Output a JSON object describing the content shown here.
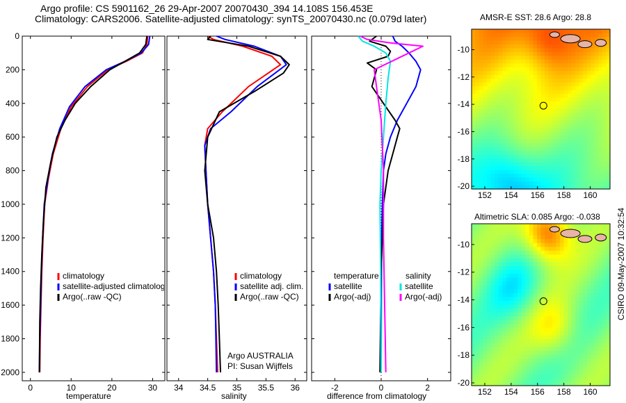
{
  "title_line1": "Argo profile: CS 5901162_26 29-Apr-2007 20070430_394 14.108S 156.453E",
  "title_line2": "Climatology: CARS2006. Satellite-adjusted climatology: synTS_20070430.nc (0.079d later)",
  "credit": "CSIRO 09-May-2007 10:32:54",
  "panel_temp": {
    "xlabel": "temperature",
    "xticks": [
      "0",
      "10",
      "20",
      "30"
    ],
    "yticks": [
      "0",
      "200",
      "400",
      "600",
      "800",
      "1000",
      "1200",
      "1400",
      "1600",
      "1800",
      "2000"
    ],
    "legend": [
      "climatology",
      "satellite-adjusted climatology",
      "Argo(..raw -QC)"
    ]
  },
  "panel_sal": {
    "xlabel": "salinity",
    "xticks": [
      "34",
      "34.5",
      "35",
      "35.5",
      "36"
    ],
    "legend": [
      "climatology",
      "satellite adj. clim.",
      "Argo(..raw -QC)"
    ],
    "note1": "Argo AUSTRALIA",
    "note2": "PI: Susan Wijffels"
  },
  "panel_diff": {
    "xlabel": "difference from climatology",
    "xticks": [
      "-2",
      "0",
      "2"
    ],
    "legend_temp_head": "temperature",
    "legend_sal_head": "salinity",
    "legend_temp": [
      "satellite",
      "Argo(-adj)"
    ],
    "legend_sal": [
      "satellite",
      "Argo(-adj)"
    ]
  },
  "map_sst": {
    "title": "AMSR-E SST: 28.6 Argo: 28.8",
    "xticks": [
      "152",
      "154",
      "156",
      "158",
      "160"
    ],
    "yticks": [
      "-10",
      "-12",
      "-14",
      "-16",
      "-18",
      "-20"
    ]
  },
  "map_sla": {
    "title": "Altimetric SLA: 0.085 Argo: -0.038",
    "xticks": [
      "152",
      "154",
      "156",
      "158",
      "160"
    ],
    "yticks": [
      "-10",
      "-12",
      "-14",
      "-16",
      "-18",
      "-20"
    ]
  },
  "colors": {
    "climatology": "#ff0000",
    "satellite": "#0000ff",
    "argo": "#000000",
    "sal_satellite": "#00e5e5",
    "sal_argo": "#ff00ff"
  },
  "chart_data": [
    {
      "type": "line",
      "xlabel": "temperature",
      "xlim": [
        -2,
        33
      ],
      "ylim": [
        2050,
        0
      ],
      "series": [
        {
          "name": "climatology",
          "x": [
            28.8,
            28.6,
            27.5,
            23.5,
            19,
            14,
            10,
            7.5,
            5.6,
            4.4,
            3.5,
            3.1,
            2.8,
            2.6,
            2.4,
            2.3
          ],
          "y": [
            0,
            50,
            100,
            150,
            200,
            300,
            420,
            550,
            700,
            850,
            1000,
            1200,
            1400,
            1600,
            1800,
            2000
          ]
        },
        {
          "name": "satellite-adjusted climatology",
          "x": [
            29.3,
            29.0,
            27.2,
            23.2,
            18.6,
            13.4,
            9.6,
            7.2,
            5.4,
            4.3,
            3.4,
            3.0,
            2.7,
            2.5,
            2.3,
            2.2
          ],
          "y": [
            0,
            50,
            100,
            150,
            200,
            300,
            420,
            550,
            700,
            850,
            1000,
            1200,
            1400,
            1600,
            1800,
            2000
          ]
        },
        {
          "name": "Argo(..raw -QC)",
          "x": [
            28.6,
            28.3,
            26.8,
            23.2,
            19.5,
            14.8,
            11,
            8.5,
            6.5,
            5,
            3.8,
            3.2,
            2.8,
            2.5,
            2.3,
            2.2
          ],
          "y": [
            0,
            50,
            100,
            150,
            200,
            300,
            400,
            500,
            600,
            750,
            900,
            1100,
            1300,
            1500,
            1700,
            2000
          ]
        }
      ]
    },
    {
      "type": "line",
      "xlabel": "salinity",
      "xlim": [
        33.8,
        36.2
      ],
      "ylim": [
        2050,
        0
      ],
      "series": [
        {
          "name": "climatology",
          "x": [
            34.5,
            34.6,
            35.1,
            35.6,
            35.75,
            35.2,
            34.75,
            34.5,
            34.45,
            34.47,
            34.5,
            34.55,
            34.6,
            34.63,
            34.65,
            34.67
          ],
          "y": [
            0,
            20,
            60,
            120,
            170,
            300,
            450,
            550,
            650,
            800,
            1000,
            1200,
            1400,
            1600,
            1800,
            2000
          ]
        },
        {
          "name": "satellite adj. clim.",
          "x": [
            34.65,
            34.8,
            35.3,
            35.75,
            35.85,
            35.35,
            34.9,
            34.55,
            34.45,
            34.47,
            34.5,
            34.55,
            34.6,
            34.63,
            34.64,
            34.65
          ],
          "y": [
            0,
            20,
            60,
            120,
            170,
            300,
            450,
            550,
            650,
            800,
            1000,
            1200,
            1400,
            1600,
            1800,
            2000
          ]
        },
        {
          "name": "Argo(..raw -QC)",
          "x": [
            34.55,
            34.5,
            35.2,
            35.75,
            35.9,
            35.8,
            35.3,
            34.7,
            34.5,
            34.45,
            34.5,
            34.6,
            34.65,
            34.68,
            34.7,
            34.72
          ],
          "y": [
            0,
            20,
            60,
            120,
            170,
            220,
            330,
            450,
            600,
            800,
            1000,
            1200,
            1400,
            1600,
            1800,
            2000
          ]
        }
      ]
    },
    {
      "type": "line",
      "xlabel": "difference from climatology",
      "xlim": [
        -3,
        3
      ],
      "ylim": [
        2050,
        0
      ],
      "series": [
        {
          "name": "satellite",
          "x": [
            0.5,
            0.6,
            0.9,
            1.2,
            1.5,
            1.7,
            1.5,
            1.1,
            0.7,
            0.4,
            0.2,
            0.1,
            0.05,
            0.02,
            0.01,
            0.0
          ],
          "y": [
            0,
            30,
            60,
            100,
            150,
            200,
            300,
            400,
            500,
            600,
            700,
            800,
            1000,
            1200,
            1500,
            2000
          ]
        },
        {
          "name": "Argo(-adj)",
          "x": [
            -0.2,
            -0.5,
            0.2,
            0.4,
            0.3,
            -0.6,
            -0.2,
            -0.4,
            0.1,
            0.6,
            0.8,
            0.7,
            0.5,
            0.3,
            0.1,
            0.0,
            -0.05
          ],
          "y": [
            0,
            30,
            60,
            90,
            120,
            160,
            200,
            300,
            400,
            500,
            550,
            600,
            700,
            800,
            1000,
            1400,
            2000
          ]
        },
        {
          "name": "satellite",
          "x": [
            -1.0,
            -0.8,
            -0.3,
            0.2,
            0.4,
            0.3,
            0.2,
            0.1,
            0.0,
            -0.05,
            -0.02,
            0.0
          ],
          "y": [
            0,
            30,
            60,
            100,
            150,
            250,
            400,
            600,
            800,
            1000,
            1400,
            2000
          ]
        },
        {
          "name": "Argo(-adj)",
          "x": [
            -0.9,
            -0.6,
            0.4,
            1.8,
            1.2,
            -0.3,
            -0.2,
            0.0,
            0.1,
            0.1,
            0.15,
            0.2
          ],
          "y": [
            0,
            20,
            40,
            60,
            100,
            200,
            300,
            500,
            800,
            1200,
            1600,
            2000
          ]
        }
      ]
    }
  ]
}
